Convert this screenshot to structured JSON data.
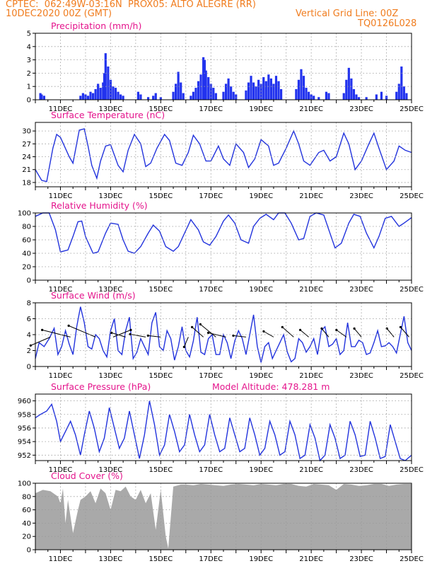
{
  "header": {
    "left_line1": "CPTEC:  062:49W-03:16N  PROX05: ALTO ALEGRE (RR)",
    "left_line2": "10DEC2020 00Z (GMT)",
    "right_line2": "Vertical Grid Line: 00Z",
    "right_line3": "TQ0126L028"
  },
  "colors": {
    "header": "#f07c1e",
    "title": "#e4148c",
    "line": "#2233dd",
    "bar": "#2233ee",
    "cloud": "#a9a9a9",
    "grid": "#999999"
  },
  "chart_data": [
    {
      "id": "precip",
      "type": "bar",
      "title": "Precipitation (mm/h)",
      "x_unit": "days since 10DEC2020 00Z",
      "x_ticks": [
        "11DEC",
        "13DEC",
        "15DEC",
        "17DEC",
        "19DEC",
        "21DEC",
        "23DEC",
        "25DEC"
      ],
      "ylim": [
        0,
        5
      ],
      "yticks": [
        0,
        1,
        2,
        3,
        4,
        5
      ],
      "bars": [
        [
          0.2,
          0.5
        ],
        [
          0.25,
          0.4
        ],
        [
          0.35,
          0.3
        ],
        [
          1.8,
          0.3
        ],
        [
          1.9,
          0.5
        ],
        [
          2.0,
          0.4
        ],
        [
          2.1,
          0.3
        ],
        [
          2.2,
          0.6
        ],
        [
          2.3,
          0.5
        ],
        [
          2.4,
          0.8
        ],
        [
          2.5,
          1.2
        ],
        [
          2.6,
          0.9
        ],
        [
          2.7,
          1.3
        ],
        [
          2.75,
          2.0
        ],
        [
          2.8,
          3.5
        ],
        [
          2.9,
          2.5
        ],
        [
          3.0,
          1.5
        ],
        [
          3.1,
          1.0
        ],
        [
          3.2,
          0.9
        ],
        [
          3.3,
          0.6
        ],
        [
          3.4,
          0.4
        ],
        [
          3.5,
          0.3
        ],
        [
          4.1,
          0.6
        ],
        [
          4.2,
          0.4
        ],
        [
          4.5,
          0.2
        ],
        [
          4.7,
          0.3
        ],
        [
          4.8,
          0.5
        ],
        [
          5.0,
          0.2
        ],
        [
          5.5,
          0.6
        ],
        [
          5.6,
          1.2
        ],
        [
          5.7,
          2.1
        ],
        [
          5.8,
          1.3
        ],
        [
          5.9,
          0.5
        ],
        [
          6.2,
          0.3
        ],
        [
          6.3,
          0.6
        ],
        [
          6.4,
          0.9
        ],
        [
          6.5,
          1.4
        ],
        [
          6.6,
          1.9
        ],
        [
          6.7,
          3.2
        ],
        [
          6.75,
          3.0
        ],
        [
          6.8,
          2.2
        ],
        [
          6.9,
          1.7
        ],
        [
          7.0,
          1.2
        ],
        [
          7.1,
          0.9
        ],
        [
          7.2,
          0.5
        ],
        [
          7.5,
          0.6
        ],
        [
          7.6,
          1.2
        ],
        [
          7.7,
          1.6
        ],
        [
          7.8,
          1.0
        ],
        [
          7.9,
          0.6
        ],
        [
          8.0,
          0.4
        ],
        [
          8.4,
          0.7
        ],
        [
          8.5,
          1.3
        ],
        [
          8.6,
          1.8
        ],
        [
          8.7,
          1.3
        ],
        [
          8.8,
          1.0
        ],
        [
          8.9,
          1.5
        ],
        [
          9.0,
          1.2
        ],
        [
          9.1,
          1.7
        ],
        [
          9.2,
          1.4
        ],
        [
          9.3,
          1.9
        ],
        [
          9.4,
          1.6
        ],
        [
          9.5,
          1.2
        ],
        [
          9.6,
          1.8
        ],
        [
          9.7,
          1.4
        ],
        [
          9.8,
          0.8
        ],
        [
          10.4,
          0.8
        ],
        [
          10.5,
          1.5
        ],
        [
          10.6,
          2.3
        ],
        [
          10.7,
          1.8
        ],
        [
          10.8,
          0.9
        ],
        [
          10.9,
          0.6
        ],
        [
          11.0,
          0.4
        ],
        [
          11.1,
          0.3
        ],
        [
          11.3,
          0.2
        ],
        [
          11.6,
          0.6
        ],
        [
          11.7,
          0.5
        ],
        [
          12.3,
          0.5
        ],
        [
          12.4,
          1.5
        ],
        [
          12.5,
          2.4
        ],
        [
          12.6,
          1.6
        ],
        [
          12.7,
          0.8
        ],
        [
          12.8,
          0.4
        ],
        [
          12.9,
          0.2
        ],
        [
          13.2,
          0.2
        ],
        [
          13.6,
          0.4
        ],
        [
          13.8,
          0.6
        ],
        [
          14.0,
          0.3
        ],
        [
          14.4,
          0.6
        ],
        [
          14.5,
          1.2
        ],
        [
          14.6,
          2.5
        ],
        [
          14.7,
          1.0
        ],
        [
          14.8,
          0.5
        ]
      ]
    },
    {
      "id": "temp",
      "type": "line",
      "title": "Surface Temperature (nC)",
      "ylim": [
        17,
        32
      ],
      "yticks": [
        18,
        21,
        24,
        27,
        30
      ],
      "x": [
        0,
        0.25,
        0.45,
        0.7,
        0.85,
        1.0,
        1.35,
        1.5,
        1.75,
        1.95,
        2.1,
        2.25,
        2.45,
        2.6,
        2.8,
        3.0,
        3.3,
        3.5,
        3.7,
        3.95,
        4.2,
        4.4,
        4.6,
        4.85,
        5.15,
        5.35,
        5.6,
        5.85,
        6.1,
        6.3,
        6.55,
        6.8,
        7.0,
        7.3,
        7.5,
        7.75,
        8.0,
        8.3,
        8.5,
        8.75,
        9.0,
        9.3,
        9.5,
        9.7,
        10.0,
        10.3,
        10.5,
        10.7,
        10.95,
        11.3,
        11.5,
        11.75,
        12.0,
        12.3,
        12.5,
        12.75,
        13.0,
        13.3,
        13.5,
        13.7,
        14.0,
        14.3,
        14.5,
        14.75,
        15.0
      ],
      "y": [
        21,
        18.5,
        18.2,
        26,
        29.2,
        28.5,
        24,
        22.5,
        30.2,
        30.5,
        26.5,
        22,
        19,
        23,
        26.5,
        26.8,
        22,
        20.5,
        25.5,
        29.2,
        27,
        21.7,
        22.5,
        26,
        29.2,
        27.8,
        22.5,
        22,
        25,
        29,
        27,
        23,
        23,
        26.5,
        23.5,
        22,
        27,
        25,
        21.5,
        23.5,
        28,
        26.5,
        22,
        22.5,
        26,
        30,
        27,
        23,
        22,
        25,
        25.5,
        23,
        24,
        29.5,
        27,
        21,
        23,
        27,
        29.5,
        26,
        21,
        23,
        26.5,
        25.5,
        25
      ]
    },
    {
      "id": "rh",
      "type": "line",
      "title": "Relative Humidity (%)",
      "ylim": [
        0,
        100
      ],
      "yticks": [
        0,
        20,
        40,
        60,
        80,
        100
      ],
      "x": [
        0,
        0.3,
        0.55,
        0.8,
        1.0,
        1.3,
        1.5,
        1.7,
        1.85,
        2.0,
        2.3,
        2.5,
        2.8,
        3.0,
        3.3,
        3.5,
        3.7,
        3.95,
        4.2,
        4.5,
        4.7,
        4.95,
        5.2,
        5.5,
        5.7,
        5.95,
        6.2,
        6.5,
        6.7,
        6.95,
        7.2,
        7.5,
        7.7,
        7.95,
        8.2,
        8.5,
        8.7,
        8.95,
        9.2,
        9.5,
        9.7,
        9.95,
        10.2,
        10.5,
        10.7,
        10.95,
        11.2,
        11.5,
        11.7,
        11.95,
        12.2,
        12.5,
        12.7,
        12.95,
        13.2,
        13.5,
        13.7,
        13.95,
        14.2,
        14.5,
        14.7,
        15.0
      ],
      "y": [
        95,
        100,
        100,
        75,
        42,
        45,
        65,
        87,
        88,
        65,
        40,
        42,
        70,
        85,
        83,
        60,
        43,
        40,
        50,
        70,
        82,
        73,
        50,
        43,
        50,
        70,
        90,
        75,
        57,
        52,
        65,
        88,
        97,
        85,
        60,
        55,
        80,
        92,
        98,
        90,
        100,
        100,
        85,
        60,
        62,
        95,
        100,
        97,
        75,
        48,
        55,
        85,
        98,
        95,
        70,
        48,
        65,
        92,
        95,
        80,
        85,
        93
      ]
    },
    {
      "id": "wind",
      "type": "line",
      "title": "Surface Wind (m/s)",
      "ylim": [
        0,
        8
      ],
      "yticks": [
        0,
        2,
        4,
        6,
        8
      ],
      "x": [
        0,
        0.15,
        0.35,
        0.55,
        0.75,
        0.9,
        1.05,
        1.2,
        1.35,
        1.5,
        1.65,
        1.8,
        1.95,
        2.1,
        2.25,
        2.4,
        2.55,
        2.7,
        2.85,
        3.0,
        3.15,
        3.3,
        3.45,
        3.6,
        3.75,
        3.9,
        4.05,
        4.2,
        4.35,
        4.5,
        4.65,
        4.8,
        4.95,
        5.1,
        5.25,
        5.4,
        5.55,
        5.7,
        5.85,
        6.0,
        6.15,
        6.3,
        6.45,
        6.6,
        6.75,
        6.9,
        7.05,
        7.2,
        7.35,
        7.5,
        7.65,
        7.8,
        7.95,
        8.1,
        8.25,
        8.4,
        8.55,
        8.7,
        8.85,
        9.0,
        9.15,
        9.3,
        9.45,
        9.6,
        9.75,
        9.9,
        10.05,
        10.2,
        10.35,
        10.5,
        10.65,
        10.8,
        10.95,
        11.1,
        11.25,
        11.4,
        11.55,
        11.7,
        11.85,
        12.0,
        12.15,
        12.3,
        12.45,
        12.6,
        12.75,
        12.9,
        13.05,
        13.2,
        13.35,
        13.5,
        13.65,
        13.8,
        13.95,
        14.1,
        14.25,
        14.4,
        14.55,
        14.7,
        14.85,
        15.0
      ],
      "y": [
        1,
        3,
        2.5,
        3.5,
        4.8,
        1.5,
        2.5,
        4.5,
        2.8,
        1.5,
        5,
        7.5,
        5.5,
        2.5,
        2.2,
        4,
        3.5,
        2,
        1.2,
        4.5,
        6,
        2,
        1.5,
        4.5,
        6.2,
        1,
        1.8,
        3.5,
        2.5,
        1.5,
        5.5,
        6.8,
        2.5,
        2,
        4.5,
        3.5,
        0.8,
        2.5,
        5,
        2,
        1.2,
        3.2,
        6.2,
        1.8,
        1.5,
        3.5,
        4,
        1.5,
        1.5,
        4,
        3,
        1,
        3.2,
        4.5,
        3.5,
        1.5,
        4,
        6.5,
        2.5,
        0.5,
        2.5,
        3,
        1,
        2,
        3,
        4,
        1.8,
        0.6,
        1,
        3.5,
        3,
        1.8,
        2.5,
        3.5,
        1.5,
        4.5,
        5,
        2.5,
        2.8,
        3.5,
        1.5,
        2,
        5.5,
        2.5,
        2.5,
        3.3,
        3,
        1.5,
        1.7,
        3,
        4.5,
        2.5,
        2.6,
        3,
        2.5,
        1.7,
        4,
        6.3,
        3,
        2
      ]
    },
    {
      "id": "pres",
      "type": "line",
      "title": "Surface Pressure (hPa)",
      "annotation": "Model Altitude: 478.281 m",
      "ylim": [
        951.2,
        961
      ],
      "yticks": [
        952,
        954,
        956,
        958,
        960
      ],
      "x": [
        0,
        0.2,
        0.45,
        0.65,
        0.85,
        1.0,
        1.2,
        1.4,
        1.6,
        1.8,
        1.95,
        2.15,
        2.35,
        2.55,
        2.75,
        2.95,
        3.15,
        3.35,
        3.55,
        3.75,
        3.95,
        4.15,
        4.35,
        4.55,
        4.75,
        4.95,
        5.15,
        5.35,
        5.55,
        5.75,
        5.95,
        6.15,
        6.35,
        6.55,
        6.75,
        6.95,
        7.15,
        7.35,
        7.55,
        7.75,
        7.95,
        8.15,
        8.35,
        8.55,
        8.75,
        8.95,
        9.15,
        9.35,
        9.55,
        9.75,
        9.95,
        10.15,
        10.35,
        10.55,
        10.75,
        10.95,
        11.15,
        11.35,
        11.55,
        11.75,
        11.95,
        12.15,
        12.35,
        12.55,
        12.75,
        12.95,
        13.15,
        13.35,
        13.55,
        13.75,
        13.95,
        14.15,
        14.35,
        14.55,
        14.75,
        15.0
      ],
      "y": [
        957.5,
        958,
        958.5,
        959.5,
        957,
        954,
        955.5,
        957,
        955,
        952,
        955,
        958.5,
        956,
        952.5,
        954.5,
        959,
        956,
        953,
        954.5,
        958.5,
        955,
        951.5,
        955,
        960,
        956.5,
        952,
        953.5,
        958,
        955.5,
        952.5,
        953.5,
        958,
        955,
        952.5,
        953.5,
        958,
        955,
        952.5,
        953,
        957.5,
        955,
        952.5,
        953,
        957.5,
        955,
        952,
        953,
        957,
        955,
        952,
        952.5,
        957,
        955,
        951.5,
        952,
        956.5,
        954.5,
        951.2,
        952,
        956.5,
        954.5,
        951.5,
        952,
        957,
        955,
        951.8,
        952,
        957,
        954.5,
        951.5,
        951.8,
        956.5,
        954,
        951.5,
        951.2,
        952
      ]
    },
    {
      "id": "cloud",
      "type": "bar",
      "title": "Cloud Cover (%)",
      "ylim": [
        0,
        100
      ],
      "yticks": [
        0,
        20,
        40,
        60,
        80,
        100
      ],
      "x": [
        0,
        0.3,
        0.6,
        0.9,
        1.0,
        1.1,
        1.2,
        1.3,
        1.5,
        1.7,
        1.8,
        2.0,
        2.2,
        2.4,
        2.6,
        2.8,
        3.0,
        3.2,
        3.4,
        3.6,
        3.8,
        4.0,
        4.2,
        4.4,
        4.6,
        4.8,
        5.0,
        5.1,
        5.2,
        5.3,
        5.5,
        5.8,
        6.0,
        6.3,
        6.6,
        6.9,
        7.2,
        7.5,
        7.8,
        8.1,
        8.4,
        8.7,
        9.0,
        9.3,
        9.6,
        9.9,
        10.2,
        10.5,
        10.8,
        11.1,
        11.4,
        11.7,
        12.0,
        12.3,
        12.6,
        12.9,
        13.2,
        13.5,
        13.8,
        14.1,
        14.4,
        14.7,
        15.0
      ],
      "y": [
        85,
        90,
        88,
        80,
        70,
        92,
        40,
        75,
        25,
        60,
        75,
        80,
        88,
        70,
        92,
        85,
        60,
        90,
        88,
        95,
        80,
        75,
        90,
        70,
        85,
        30,
        90,
        55,
        20,
        2,
        95,
        98,
        98,
        97,
        99,
        98,
        97,
        96,
        98,
        99,
        98,
        97,
        99,
        98,
        97,
        99,
        99,
        96,
        95,
        99,
        98,
        97,
        90,
        99,
        98,
        96,
        97,
        99,
        99,
        96,
        98,
        99,
        99
      ]
    }
  ]
}
